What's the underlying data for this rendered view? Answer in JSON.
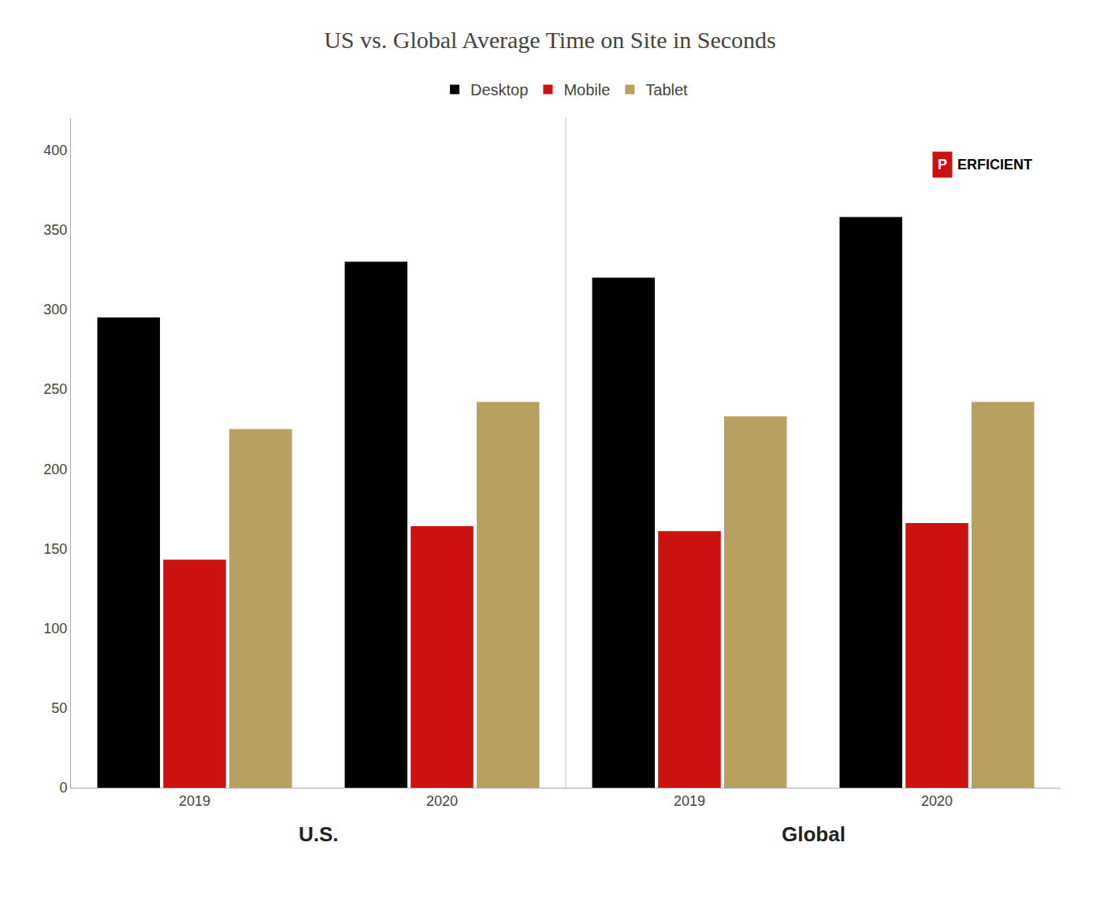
{
  "chart_data": {
    "type": "bar",
    "title": "US vs. Global Average Time on Site in Seconds",
    "categories": [
      "2019",
      "2020",
      "2019",
      "2020"
    ],
    "groups": [
      "U.S.",
      "Global"
    ],
    "series": [
      {
        "name": "Desktop",
        "color": "#000000",
        "values": [
          295,
          330,
          320,
          358
        ]
      },
      {
        "name": "Mobile",
        "color": "#cc1111",
        "values": [
          143,
          164,
          161,
          166
        ]
      },
      {
        "name": "Tablet",
        "color": "#b8a060",
        "values": [
          225,
          242,
          233,
          242
        ]
      }
    ],
    "annotations": [
      {
        "text": "P",
        "color": "#cc1111"
      },
      {
        "text": "ERFICIENT"
      }
    ],
    "ylim": [
      0,
      420
    ],
    "yticks": [
      0,
      50,
      100,
      150,
      200,
      250,
      300,
      350,
      400
    ],
    "grid": false,
    "legend": "top"
  }
}
